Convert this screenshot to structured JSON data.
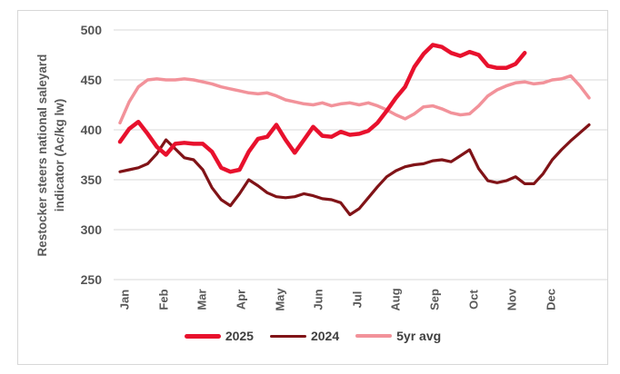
{
  "chart_data": {
    "type": "line",
    "title": "",
    "xlabel": "",
    "ylabel": "Restocker steers national saleyard indicator (Ac/kg lw)",
    "ylim": [
      250,
      500
    ],
    "y_ticks": [
      250,
      300,
      350,
      400,
      450,
      500
    ],
    "grid": true,
    "x_frequency": "weekly",
    "categories": [
      "Jan",
      "Feb",
      "Mar",
      "Apr",
      "May",
      "Jun",
      "Jul",
      "Aug",
      "Sep",
      "Oct",
      "Nov",
      "Dec"
    ],
    "legend_position": "bottom",
    "series": [
      {
        "name": "5yr avg",
        "color": "#f2929a",
        "stroke_width": 3.5,
        "values": [
          407,
          428,
          443,
          450,
          451,
          450,
          450,
          451,
          450,
          448,
          446,
          443,
          441,
          439,
          437,
          436,
          437,
          434,
          430,
          428,
          426,
          425,
          427,
          424,
          426,
          427,
          425,
          427,
          424,
          420,
          415,
          411,
          416,
          423,
          424,
          421,
          417,
          415,
          416,
          424,
          434,
          440,
          444,
          447,
          448,
          446,
          447,
          450,
          451,
          454,
          444,
          432
        ]
      },
      {
        "name": "2024",
        "color": "#801317",
        "stroke_width": 3.2,
        "values": [
          358,
          360,
          362,
          366,
          376,
          390,
          381,
          372,
          370,
          360,
          342,
          330,
          324,
          336,
          350,
          344,
          337,
          333,
          332,
          333,
          336,
          334,
          331,
          330,
          327,
          315,
          321,
          332,
          343,
          353,
          359,
          363,
          365,
          366,
          369,
          370,
          368,
          374,
          380,
          361,
          349,
          347,
          349,
          353,
          346,
          346,
          356,
          370,
          380,
          389,
          397,
          405
        ]
      },
      {
        "name": "2025",
        "color": "#e8112d",
        "stroke_width": 4.5,
        "values": [
          388,
          401,
          408,
          396,
          383,
          375,
          386,
          387,
          386,
          386,
          378,
          362,
          358,
          360,
          378,
          391,
          393,
          405,
          390,
          377,
          390,
          403,
          394,
          393,
          398,
          395,
          396,
          399,
          407,
          419,
          432,
          443,
          463,
          476,
          485,
          483,
          477,
          474,
          478,
          475,
          464,
          462,
          462,
          466,
          477
        ]
      }
    ],
    "legend_order": [
      "2025",
      "2024",
      "5yr avg"
    ]
  },
  "style_colors": {
    "gridline": "#d9d9d9",
    "frame_border": "#d7d7d7",
    "axis_text": "#595959",
    "tick_text": "#555555",
    "legend_text": "#404040",
    "background": "#ffffff"
  }
}
